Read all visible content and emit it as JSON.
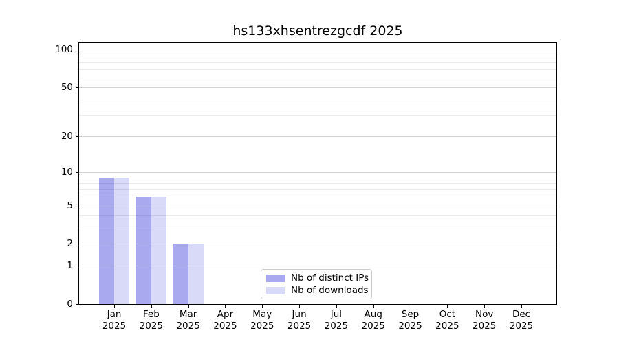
{
  "figure": {
    "background": "#ffffff",
    "text_color": "#000000"
  },
  "chart_data": {
    "type": "bar",
    "title": "hs133xhsentrezgcdf 2025",
    "categories": [
      "Jan",
      "Feb",
      "Mar",
      "Apr",
      "May",
      "Jun",
      "Jul",
      "Aug",
      "Sep",
      "Oct",
      "Nov",
      "Dec"
    ],
    "x_year_label": "2025",
    "series": [
      {
        "name": "Nb of distinct IPs",
        "color": "#a9a9f0",
        "values": [
          9,
          6,
          2,
          0,
          0,
          0,
          0,
          0,
          0,
          0,
          0,
          0
        ]
      },
      {
        "name": "Nb of downloads",
        "color": "#d9d9f8",
        "values": [
          9,
          6,
          2,
          0,
          0,
          0,
          0,
          0,
          0,
          0,
          0,
          0
        ]
      }
    ],
    "yscale": "log1p",
    "ylim": [
      0,
      114
    ],
    "yticks": [
      0,
      1,
      2,
      5,
      10,
      20,
      50,
      100
    ],
    "grid_values": [
      1,
      2,
      3,
      4,
      5,
      6,
      7,
      8,
      9,
      10,
      20,
      30,
      40,
      50,
      60,
      70,
      80,
      90,
      100
    ],
    "grid": "horizontal",
    "grid_over_bars": true,
    "legend_position": "lower center",
    "legend_border_color": "#cccccc",
    "xlabel": "",
    "ylabel": ""
  }
}
